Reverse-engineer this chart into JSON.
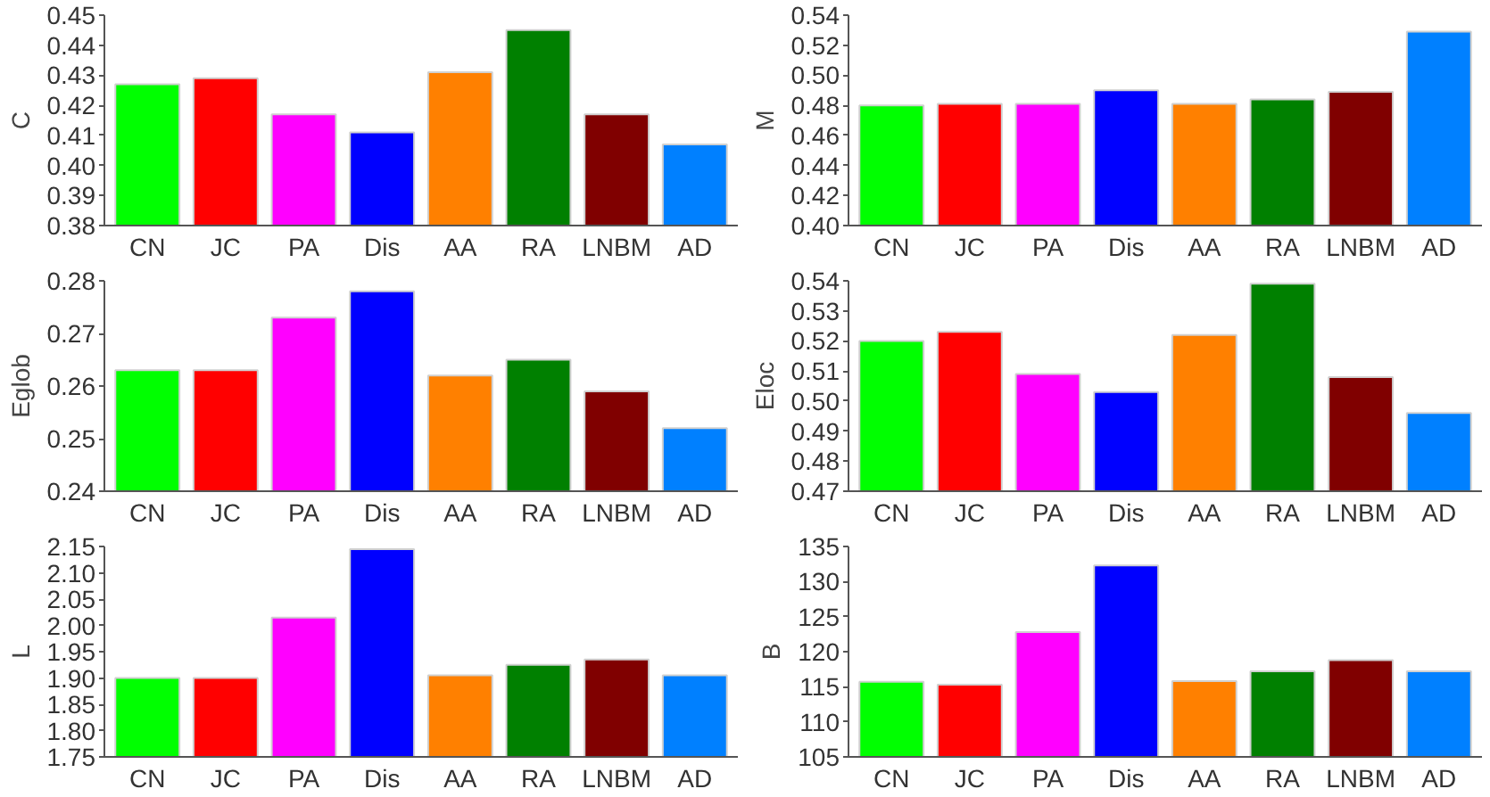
{
  "chart_data": [
    {
      "type": "bar",
      "ylabel": "C",
      "categories": [
        "CN",
        "JC",
        "PA",
        "Dis",
        "AA",
        "RA",
        "LNBM",
        "AD"
      ],
      "colors": [
        "#00ff00",
        "#ff0000",
        "#ff00ff",
        "#0000ff",
        "#ff8000",
        "#008000",
        "#800000",
        "#0080ff"
      ],
      "values": [
        0.427,
        0.429,
        0.417,
        0.411,
        0.431,
        0.445,
        0.417,
        0.407
      ],
      "ylim": [
        0.38,
        0.45
      ],
      "yticks": [
        {
          "value": 0.38,
          "label": "0.38"
        },
        {
          "value": 0.39,
          "label": "0.39"
        },
        {
          "value": 0.4,
          "label": "0.40"
        },
        {
          "value": 0.41,
          "label": "0.41"
        },
        {
          "value": 0.42,
          "label": "0.42"
        },
        {
          "value": 0.43,
          "label": "0.43"
        },
        {
          "value": 0.44,
          "label": "0.44"
        },
        {
          "value": 0.45,
          "label": "0.45"
        }
      ],
      "grid": false
    },
    {
      "type": "bar",
      "ylabel": "M",
      "categories": [
        "CN",
        "JC",
        "PA",
        "Dis",
        "AA",
        "RA",
        "LNBM",
        "AD"
      ],
      "colors": [
        "#00ff00",
        "#ff0000",
        "#ff00ff",
        "#0000ff",
        "#ff8000",
        "#008000",
        "#800000",
        "#0080ff"
      ],
      "values": [
        0.48,
        0.481,
        0.481,
        0.49,
        0.481,
        0.484,
        0.489,
        0.529
      ],
      "ylim": [
        0.4,
        0.54
      ],
      "yticks": [
        {
          "value": 0.4,
          "label": "0.40"
        },
        {
          "value": 0.42,
          "label": "0.42"
        },
        {
          "value": 0.44,
          "label": "0.44"
        },
        {
          "value": 0.46,
          "label": "0.46"
        },
        {
          "value": 0.48,
          "label": "0.48"
        },
        {
          "value": 0.5,
          "label": "0.50"
        },
        {
          "value": 0.52,
          "label": "0.52"
        },
        {
          "value": 0.54,
          "label": "0.54"
        }
      ],
      "grid": false
    },
    {
      "type": "bar",
      "ylabel": "Eglob",
      "categories": [
        "CN",
        "JC",
        "PA",
        "Dis",
        "AA",
        "RA",
        "LNBM",
        "AD"
      ],
      "colors": [
        "#00ff00",
        "#ff0000",
        "#ff00ff",
        "#0000ff",
        "#ff8000",
        "#008000",
        "#800000",
        "#0080ff"
      ],
      "values": [
        0.263,
        0.263,
        0.273,
        0.278,
        0.262,
        0.265,
        0.259,
        0.252
      ],
      "ylim": [
        0.24,
        0.28
      ],
      "yticks": [
        {
          "value": 0.24,
          "label": "0.24"
        },
        {
          "value": 0.25,
          "label": "0.25"
        },
        {
          "value": 0.26,
          "label": "0.26"
        },
        {
          "value": 0.27,
          "label": "0.27"
        },
        {
          "value": 0.28,
          "label": "0.28"
        }
      ],
      "grid": false
    },
    {
      "type": "bar",
      "ylabel": "Eloc",
      "categories": [
        "CN",
        "JC",
        "PA",
        "Dis",
        "AA",
        "RA",
        "LNBM",
        "AD"
      ],
      "colors": [
        "#00ff00",
        "#ff0000",
        "#ff00ff",
        "#0000ff",
        "#ff8000",
        "#008000",
        "#800000",
        "#0080ff"
      ],
      "values": [
        0.52,
        0.523,
        0.509,
        0.503,
        0.522,
        0.539,
        0.508,
        0.496
      ],
      "ylim": [
        0.47,
        0.54
      ],
      "yticks": [
        {
          "value": 0.47,
          "label": "0.47"
        },
        {
          "value": 0.48,
          "label": "0.48"
        },
        {
          "value": 0.49,
          "label": "0.49"
        },
        {
          "value": 0.5,
          "label": "0.50"
        },
        {
          "value": 0.51,
          "label": "0.51"
        },
        {
          "value": 0.52,
          "label": "0.52"
        },
        {
          "value": 0.53,
          "label": "0.53"
        },
        {
          "value": 0.54,
          "label": "0.54"
        }
      ],
      "grid": false
    },
    {
      "type": "bar",
      "ylabel": "L",
      "categories": [
        "CN",
        "JC",
        "PA",
        "Dis",
        "AA",
        "RA",
        "LNBM",
        "AD"
      ],
      "colors": [
        "#00ff00",
        "#ff0000",
        "#ff00ff",
        "#0000ff",
        "#ff8000",
        "#008000",
        "#800000",
        "#0080ff"
      ],
      "values": [
        1.9,
        1.9,
        2.015,
        2.145,
        1.905,
        1.925,
        1.935,
        1.905
      ],
      "ylim": [
        1.75,
        2.15
      ],
      "yticks": [
        1.75,
        {
          "value": 1.8,
          "label": "1.80"
        },
        1.85,
        {
          "value": 1.9,
          "label": "1.90"
        },
        1.95,
        {
          "value": 2.0,
          "label": "2.00"
        },
        2.05,
        {
          "value": 2.1,
          "label": "2.10"
        },
        2.15
      ],
      "grid": false
    },
    {
      "type": "bar",
      "ylabel": "B",
      "categories": [
        "CN",
        "JC",
        "PA",
        "Dis",
        "AA",
        "RA",
        "LNBM",
        "AD"
      ],
      "colors": [
        "#00ff00",
        "#ff0000",
        "#ff00ff",
        "#0000ff",
        "#ff8000",
        "#008000",
        "#800000",
        "#0080ff"
      ],
      "values": [
        115.7,
        115.3,
        122.8,
        132.3,
        115.8,
        117.2,
        118.8,
        117.2
      ],
      "ylim": [
        105,
        135
      ],
      "yticks": [
        105,
        110,
        115,
        120,
        125,
        130,
        135
      ],
      "grid": false
    }
  ]
}
